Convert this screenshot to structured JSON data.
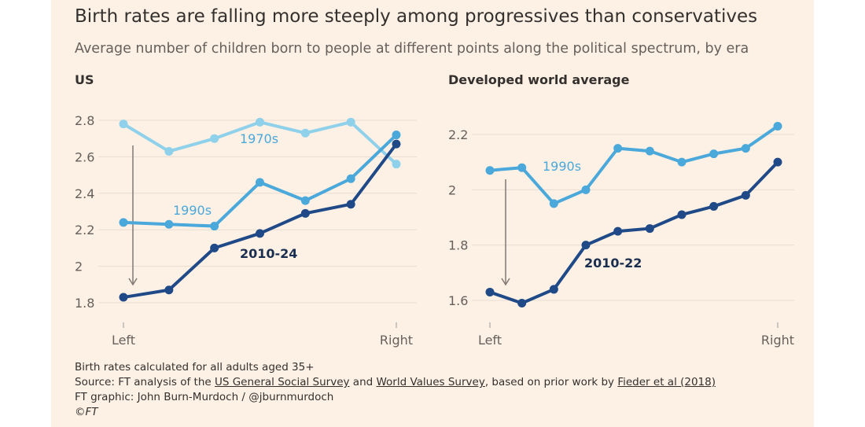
{
  "title": "Birth rates are falling more steeply among progressives than conservatives",
  "subtitle": "Average number of children born to people at different points along the political spectrum, by era",
  "colors": {
    "c1970s": "#8fd0ea",
    "c1990s": "#4aa8da",
    "c2010": "#1f4a87",
    "grid": "#e9ddd1",
    "arrow": "#807973"
  },
  "chart_data": [
    {
      "type": "line",
      "title": "US",
      "x_ticks": [
        "Left",
        "Right"
      ],
      "y_ticks": [
        "2.8",
        "2.6",
        "2.4",
        "2.2",
        "2",
        "1.8"
      ],
      "y_values": [
        2.8,
        2.6,
        2.4,
        2.2,
        2.0,
        1.8
      ],
      "ylim": [
        1.8,
        2.8
      ],
      "grid": true,
      "series": [
        {
          "name": "1970s",
          "color": "#8fd0ea",
          "values": [
            2.78,
            2.63,
            2.7,
            2.79,
            2.73,
            2.79,
            2.56
          ]
        },
        {
          "name": "1990s",
          "color": "#4aa8da",
          "values": [
            2.24,
            2.23,
            2.22,
            2.46,
            2.36,
            2.48,
            2.72
          ]
        },
        {
          "name": "2010-24",
          "color": "#1f4a87",
          "values": [
            1.83,
            1.87,
            2.1,
            2.18,
            2.29,
            2.34,
            2.67
          ]
        }
      ]
    },
    {
      "type": "line",
      "title": "Developed world average",
      "x_ticks": [
        "Left",
        "Right"
      ],
      "y_ticks": [
        "2.2",
        "2",
        "1.8",
        "1.6"
      ],
      "y_values": [
        2.2,
        2.0,
        1.8,
        1.6
      ],
      "ylim": [
        1.6,
        2.2
      ],
      "grid": true,
      "series": [
        {
          "name": "1990s",
          "color": "#4aa8da",
          "values": [
            2.07,
            2.08,
            1.95,
            2.0,
            2.15,
            2.14,
            2.1,
            2.13,
            2.15,
            2.23
          ]
        },
        {
          "name": "2010-22",
          "color": "#1f4a87",
          "values": [
            1.63,
            1.59,
            1.64,
            1.8,
            1.85,
            1.86,
            1.91,
            1.94,
            1.98,
            2.1
          ]
        }
      ]
    }
  ],
  "footer": {
    "note": "Birth rates calculated for all adults aged 35+",
    "source_prefix": "Source: FT analysis of the ",
    "link1": "US General Social Survey",
    "and": " and ",
    "link2": "World Values Survey",
    "mid": ", based on prior work by ",
    "link3": "Fieder et al (2018)",
    "graphic": "FT graphic: John Burn-Murdoch / @jburnmurdoch",
    "copyright": "©FT"
  }
}
